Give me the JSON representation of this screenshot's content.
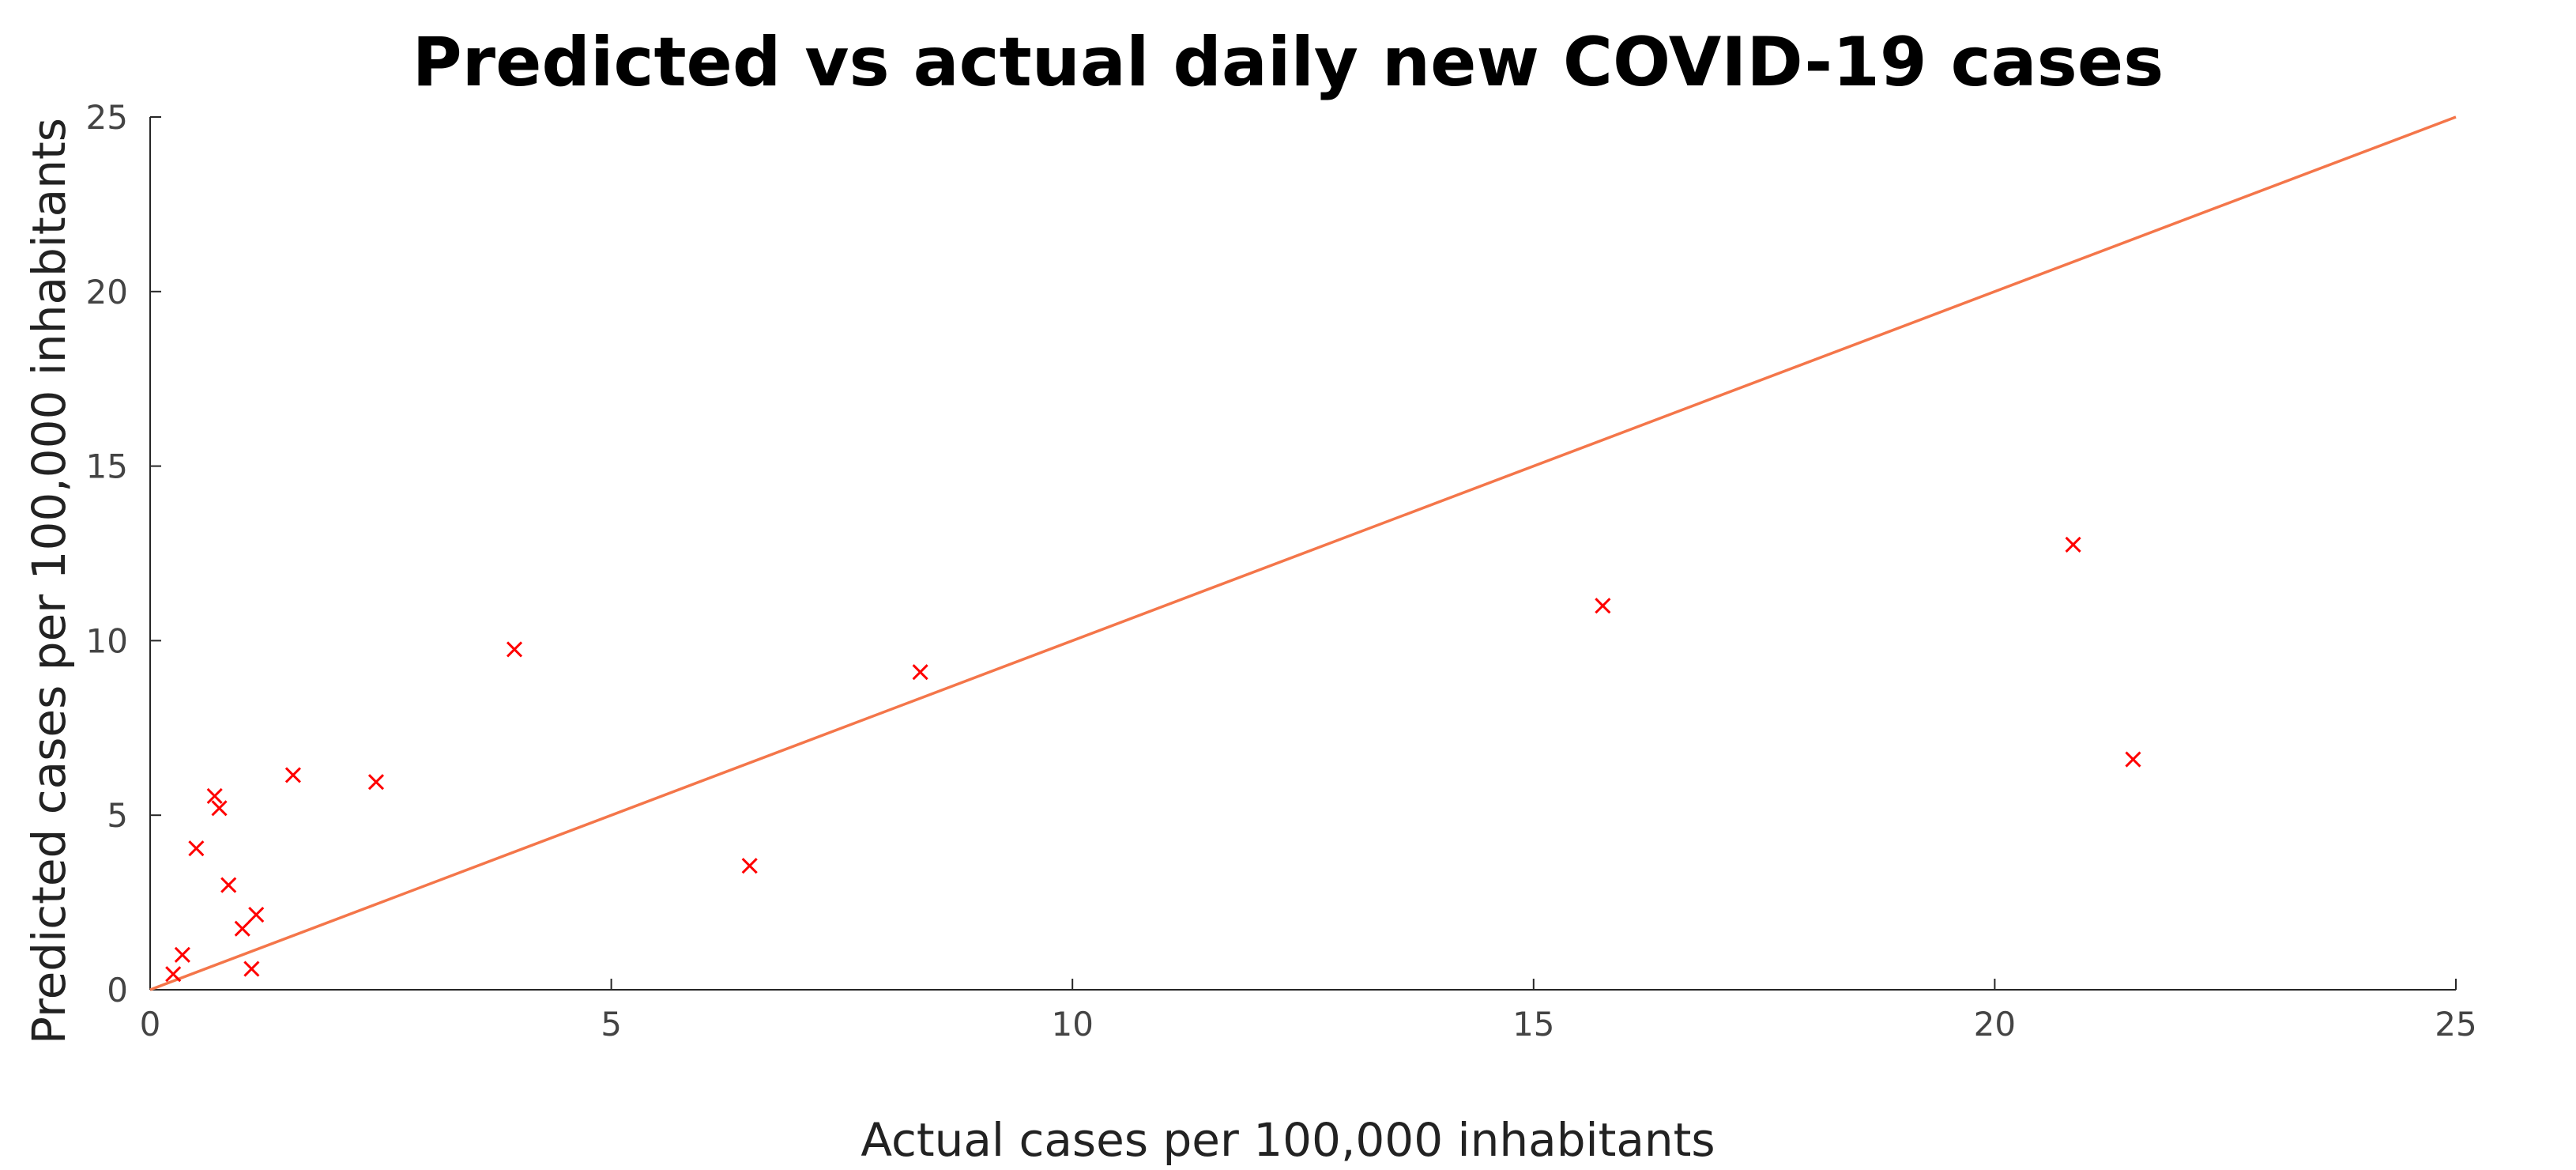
{
  "chart_data": {
    "type": "scatter",
    "title": "Predicted vs actual daily new COVID-19 cases",
    "xlabel": "Actual cases per 100,000 inhabitants",
    "ylabel": "Predicted cases per 100,000 inhabitants",
    "xlim": [
      0,
      25
    ],
    "ylim": [
      0,
      25
    ],
    "xticks": [
      0,
      5,
      10,
      15,
      20,
      25
    ],
    "yticks": [
      0,
      5,
      10,
      15,
      20,
      25
    ],
    "grid": false,
    "reference_line": {
      "x": [
        0,
        25
      ],
      "y": [
        0,
        25
      ],
      "color": "#f4764a"
    },
    "series": [
      {
        "marker": "x",
        "color": "#ff0000",
        "points": [
          {
            "x": 0.25,
            "y": 0.45
          },
          {
            "x": 0.35,
            "y": 1.0
          },
          {
            "x": 0.5,
            "y": 4.05
          },
          {
            "x": 0.7,
            "y": 5.55
          },
          {
            "x": 0.75,
            "y": 5.2
          },
          {
            "x": 0.85,
            "y": 3.0
          },
          {
            "x": 1.0,
            "y": 1.75
          },
          {
            "x": 1.1,
            "y": 0.6
          },
          {
            "x": 1.15,
            "y": 2.15
          },
          {
            "x": 1.55,
            "y": 6.15
          },
          {
            "x": 2.45,
            "y": 5.95
          },
          {
            "x": 3.95,
            "y": 9.75
          },
          {
            "x": 6.5,
            "y": 3.55
          },
          {
            "x": 8.35,
            "y": 9.1
          },
          {
            "x": 15.75,
            "y": 11.0
          },
          {
            "x": 20.85,
            "y": 12.75
          },
          {
            "x": 21.5,
            "y": 6.6
          }
        ]
      }
    ]
  }
}
